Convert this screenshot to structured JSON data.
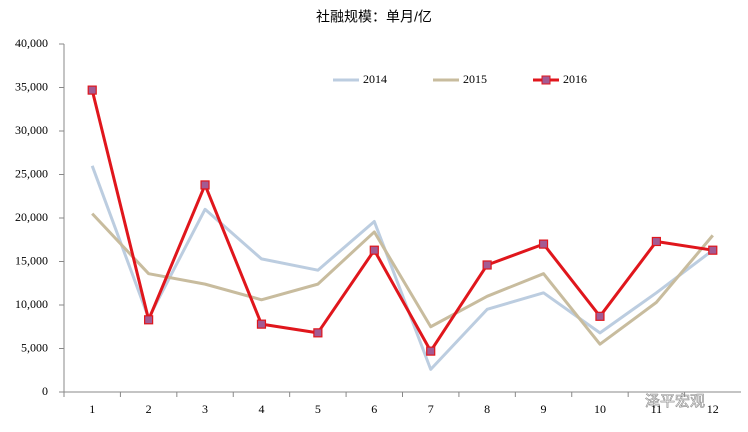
{
  "chart_data": {
    "type": "line",
    "title": "社融规模：单月/亿",
    "categories": [
      "1",
      "2",
      "3",
      "4",
      "5",
      "6",
      "7",
      "8",
      "9",
      "10",
      "11",
      "12"
    ],
    "series": [
      {
        "name": "2014",
        "color": "#bccde0",
        "width": 3,
        "values": [
          26000,
          8500,
          21000,
          15300,
          14000,
          19600,
          2600,
          9500,
          11400,
          6800,
          11400,
          16300
        ]
      },
      {
        "name": "2015",
        "color": "#c8bc9e",
        "width": 3,
        "values": [
          20500,
          13600,
          12400,
          10600,
          12400,
          18400,
          7500,
          11000,
          13600,
          5500,
          10300,
          18000
        ]
      },
      {
        "name": "2016",
        "color": "#e0161c",
        "width": 3,
        "marker": "square",
        "marker_color": "#a35b93",
        "values": [
          34700,
          8300,
          23800,
          7800,
          6800,
          16300,
          4700,
          14600,
          17000,
          8700,
          17300,
          16300
        ]
      }
    ],
    "ylim": [
      0,
      40000
    ],
    "yticks": [
      0,
      {
        "value": 5000,
        "label": "5,000"
      },
      {
        "value": 10000,
        "label": "10,000"
      },
      {
        "value": 15000,
        "label": "15,000"
      },
      {
        "value": 20000,
        "label": "20,000"
      },
      {
        "value": 25000,
        "label": "25,000"
      },
      {
        "value": 30000,
        "label": "30,000"
      },
      {
        "value": 35000,
        "label": "35,000"
      },
      {
        "value": 40000,
        "label": "40,000"
      }
    ],
    "grid": false,
    "legend": "top-center",
    "watermark": "泽平宏观"
  }
}
